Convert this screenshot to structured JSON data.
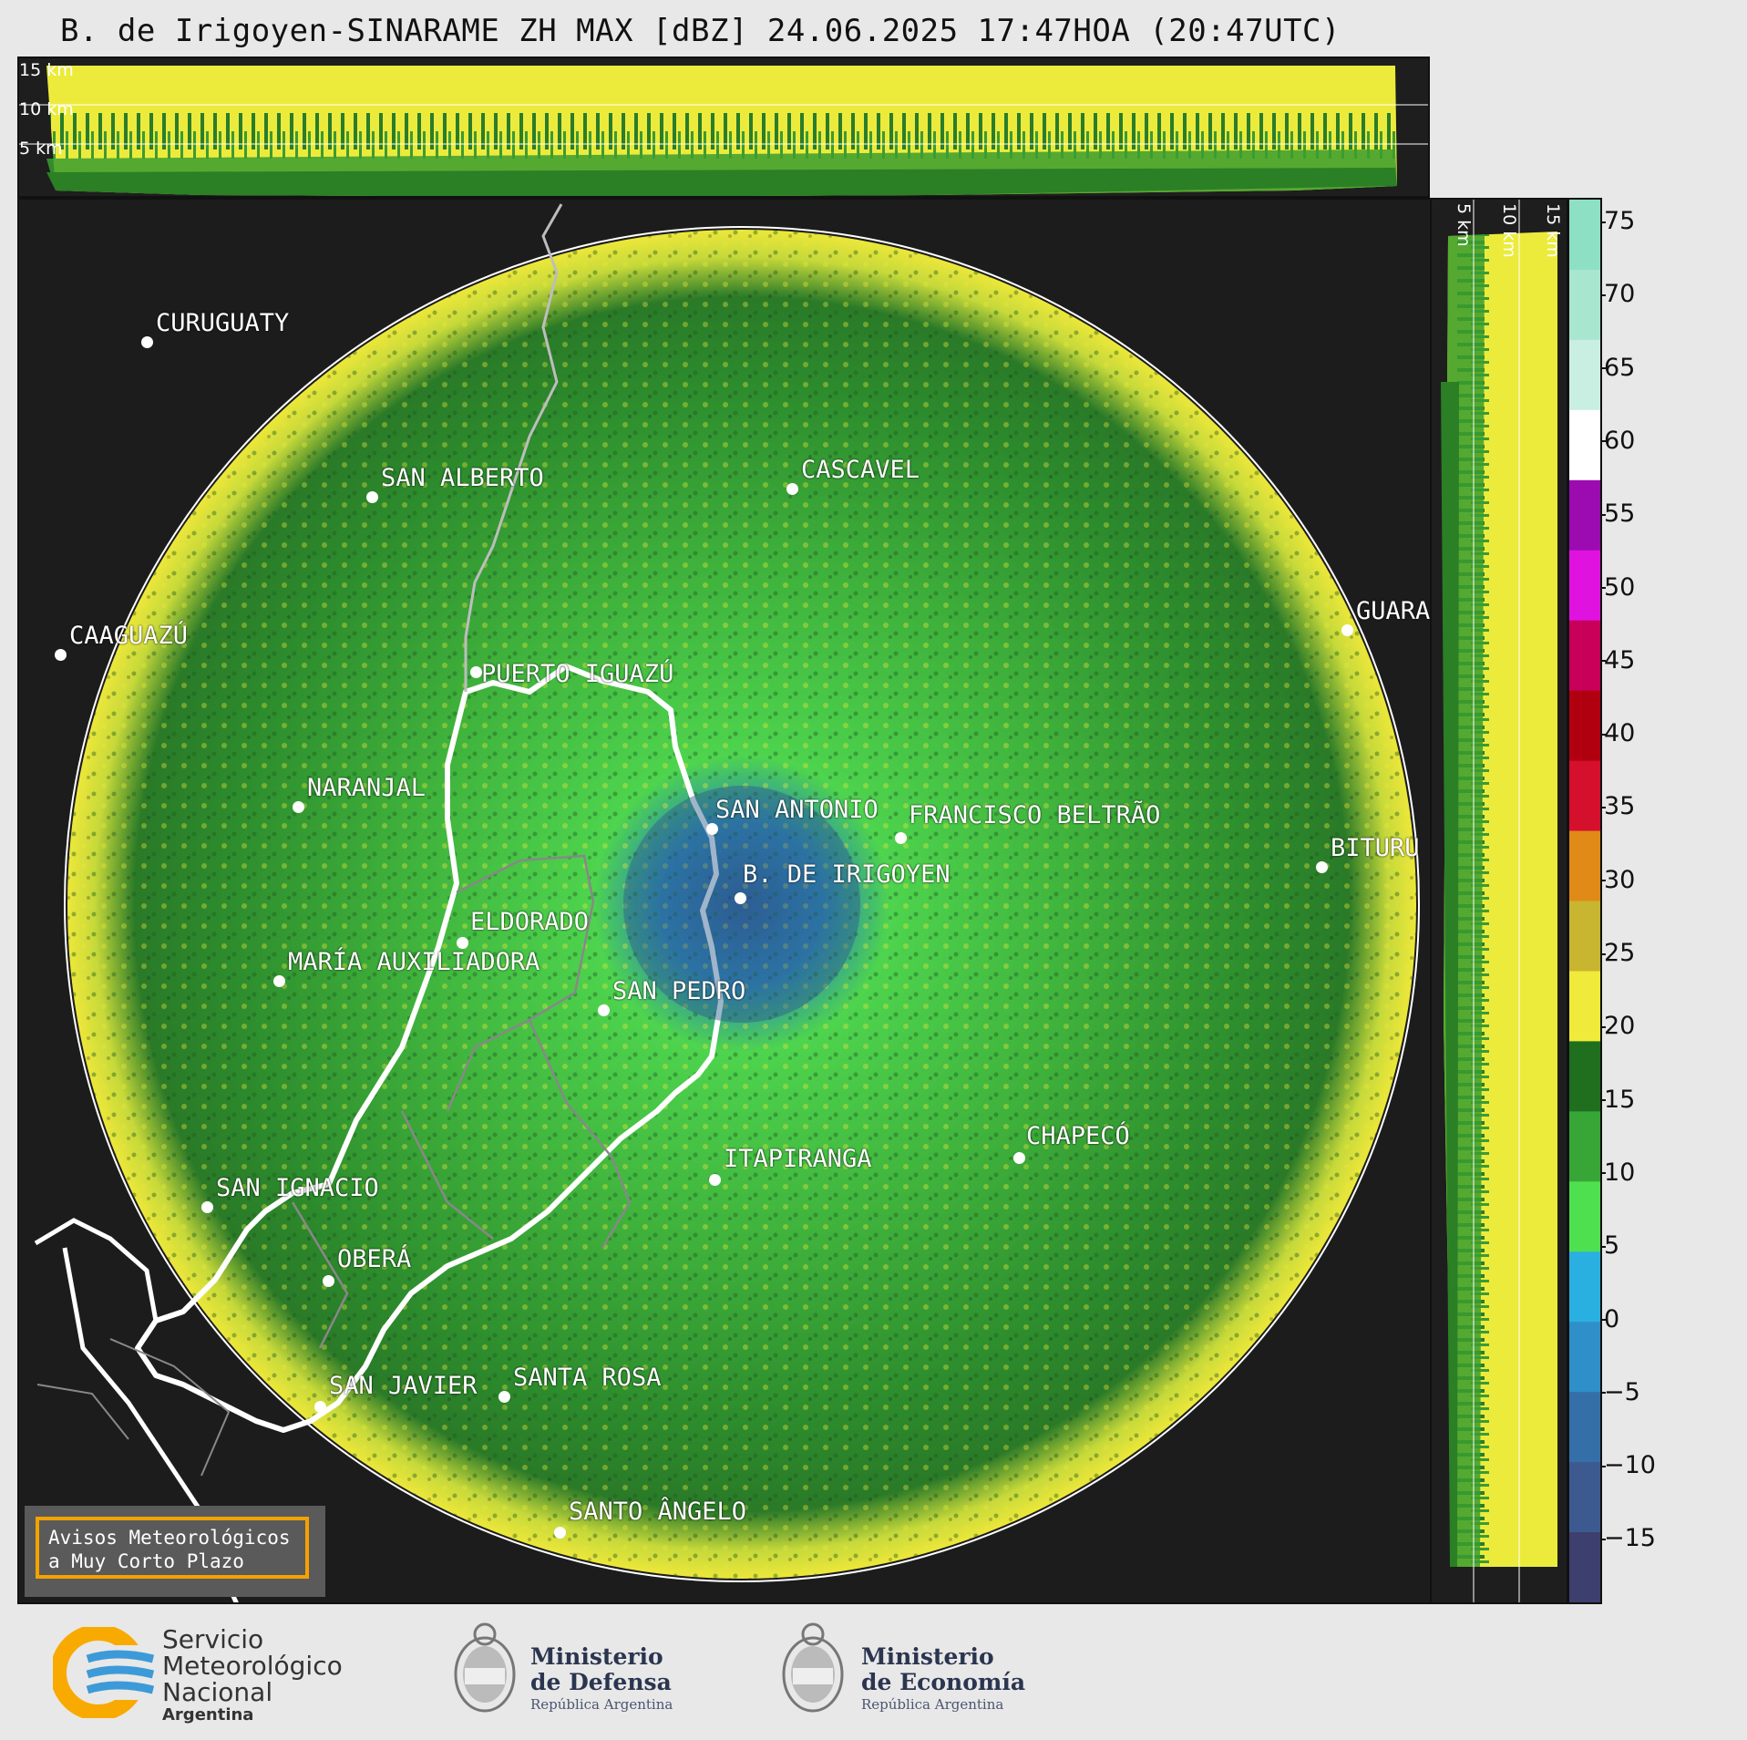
{
  "title": "B. de Irigoyen-SINARAME ZH MAX [dBZ] 24.06.2025 17:47HOA (20:47UTC)",
  "top_panel": {
    "height_labels": [
      "15 km",
      "10 km",
      "5 km"
    ]
  },
  "side_panel": {
    "height_labels": [
      "5 km",
      "10 km",
      "15 km"
    ]
  },
  "colorbar": {
    "unit": "dBZ",
    "ticks": [
      "75",
      "70",
      "65",
      "60",
      "55",
      "50",
      "45",
      "40",
      "35",
      "30",
      "25",
      "20",
      "15",
      "10",
      "5",
      "0",
      "−5",
      "−10",
      "−15"
    ],
    "colors": [
      "#8ee0c4",
      "#a8e6cf",
      "#c9efe2",
      "#ffffff",
      "#9b0bb0",
      "#e012e0",
      "#c8005a",
      "#b00010",
      "#d4102c",
      "#e08a18",
      "#c8b530",
      "#f0ea3a",
      "#1f6f1f",
      "#37a637",
      "#4ee04e",
      "#2ab0e0",
      "#2f8fc8",
      "#356fa8",
      "#3d5a90",
      "#3d3f6e"
    ]
  },
  "cities": [
    {
      "name": "CURUGUATY"
    },
    {
      "name": "SAN ALBERTO"
    },
    {
      "name": "CASCAVEL"
    },
    {
      "name": "CAAGUAZÚ"
    },
    {
      "name": "GUARA"
    },
    {
      "name": "PUERTO IGUAZÚ"
    },
    {
      "name": "NARANJAL"
    },
    {
      "name": "SAN ANTONIO"
    },
    {
      "name": "FRANCISCO BELTRÃO"
    },
    {
      "name": "BITURU"
    },
    {
      "name": "B. DE IRIGOYEN"
    },
    {
      "name": "ELDORADO"
    },
    {
      "name": "MARÍA AUXILIADORA"
    },
    {
      "name": "SAN PEDRO"
    },
    {
      "name": "CHAPECÓ"
    },
    {
      "name": "ITAPIRANGA"
    },
    {
      "name": "SAN IGNACIO"
    },
    {
      "name": "OBERÁ"
    },
    {
      "name": "SAN JAVIER"
    },
    {
      "name": "SANTA ROSA"
    },
    {
      "name": "SANTO ÂNGELO"
    }
  ],
  "avisos": {
    "line1": "Avisos Meteorológicos",
    "line2": "a Muy Corto Plazo"
  },
  "footer": {
    "smn": {
      "line1": "Servicio",
      "line2": "Meteorológico",
      "line3": "Nacional",
      "country": "Argentina"
    },
    "defensa": {
      "line1": "Ministerio",
      "line2": "de Defensa",
      "sub": "República Argentina"
    },
    "economia": {
      "line1": "Ministerio",
      "line2": "de Economía",
      "sub": "República Argentina"
    }
  }
}
